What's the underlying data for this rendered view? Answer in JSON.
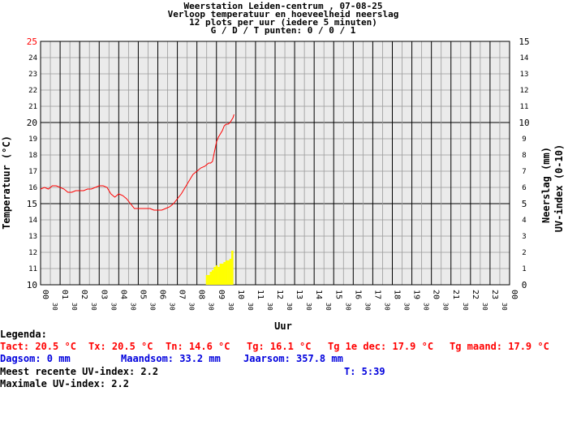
{
  "header": {
    "line1": "Weerstation Leiden-centrum , 07-08-25",
    "line2": "Verloop temperatuur en hoeveelheid neerslag",
    "line3": "12 plots per uur (iedere 5 minuten)",
    "line4": "G / D / T punten: 0 / 0 / 1"
  },
  "chart_data": {
    "type": "line",
    "x_unit": "hour",
    "xlabel": "Uur",
    "ylabel_left": "Temperatuur (°C)",
    "ylabel_right1": "Neerslag (mm)",
    "ylabel_right2": "UV-index (0-10)",
    "xlim": [
      0,
      24
    ],
    "ylim_left": [
      10,
      25
    ],
    "ylim_right": [
      0,
      15
    ],
    "x_ticks": [
      "00",
      "01",
      "02",
      "03",
      "04",
      "05",
      "06",
      "07",
      "08",
      "09",
      "10",
      "11",
      "12",
      "13",
      "14",
      "15",
      "16",
      "17",
      "18",
      "19",
      "20",
      "21",
      "22",
      "23",
      "00"
    ],
    "x_minor_label": "30",
    "y_left_ticks": [
      10,
      11,
      12,
      13,
      14,
      15,
      16,
      17,
      18,
      19,
      20,
      21,
      22,
      23,
      24,
      25
    ],
    "y_right_ticks": [
      0,
      1,
      2,
      3,
      4,
      5,
      6,
      7,
      8,
      9,
      10,
      11,
      12,
      13,
      14,
      15
    ],
    "temperature_color": "#ff0000",
    "uv_color": "#ffff00",
    "temperature": {
      "name": "Temperatuur",
      "x": [
        0.0,
        0.2,
        0.4,
        0.6,
        0.8,
        1.0,
        1.2,
        1.4,
        1.6,
        1.8,
        2.0,
        2.2,
        2.4,
        2.6,
        2.8,
        3.0,
        3.2,
        3.4,
        3.6,
        3.8,
        4.0,
        4.2,
        4.4,
        4.6,
        4.8,
        5.0,
        5.2,
        5.4,
        5.6,
        5.8,
        6.0,
        6.2,
        6.4,
        6.6,
        6.8,
        7.0,
        7.2,
        7.4,
        7.6,
        7.8,
        8.0,
        8.2,
        8.4,
        8.6,
        8.7,
        8.8,
        8.9,
        9.0,
        9.1,
        9.2,
        9.3,
        9.4,
        9.5,
        9.6,
        9.7,
        9.75,
        9.85,
        9.9
      ],
      "y": [
        15.9,
        16.0,
        15.9,
        16.1,
        16.1,
        16.0,
        15.9,
        15.7,
        15.7,
        15.8,
        15.8,
        15.8,
        15.9,
        15.9,
        16.0,
        16.1,
        16.1,
        16.0,
        15.6,
        15.4,
        15.6,
        15.5,
        15.3,
        15.0,
        14.7,
        14.7,
        14.7,
        14.7,
        14.7,
        14.6,
        14.6,
        14.6,
        14.7,
        14.8,
        15.0,
        15.3,
        15.6,
        16.0,
        16.4,
        16.8,
        17.0,
        17.2,
        17.3,
        17.5,
        17.5,
        17.6,
        18.2,
        18.8,
        19.1,
        19.3,
        19.5,
        19.8,
        19.9,
        19.9,
        20.0,
        20.1,
        20.3,
        20.5
      ]
    },
    "uv_index": {
      "name": "UV-index",
      "x": [
        8.5,
        8.6,
        8.7,
        8.8,
        8.9,
        9.0,
        9.1,
        9.2,
        9.3,
        9.4,
        9.5,
        9.6,
        9.7,
        9.8
      ],
      "y": [
        0.6,
        0.6,
        0.8,
        0.9,
        1.1,
        1.2,
        1.1,
        1.3,
        1.3,
        1.4,
        1.5,
        1.5,
        1.6,
        2.1
      ]
    }
  },
  "legend": {
    "title": "Legenda:",
    "tact": "Tact: 20.5 °C",
    "tx": "Tx: 20.5 °C",
    "tn": "Tn: 14.6 °C",
    "tg": "Tg: 16.1 °C",
    "tg_dec": "Tg 1e dec: 17.9 °C",
    "tg_maand": "Tg maand: 17.9 °C",
    "dagsom": "Dagsom: 0 mm",
    "maandsom": "Maandsom: 33.2 mm",
    "jaarsom": "Jaarsom: 357.8 mm",
    "uv_recent": "Meest recente UV-index: 2.2",
    "time": "T: 5:39",
    "uv_max": "Maximale UV-index: 2.2"
  }
}
